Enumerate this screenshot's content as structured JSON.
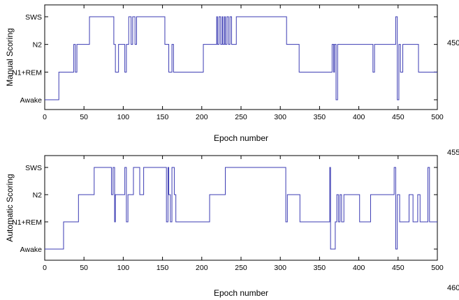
{
  "figure": {
    "side_numbers": [
      "450",
      "455",
      "460"
    ]
  },
  "chart_data": [
    {
      "type": "line",
      "xlabel": "Epoch number",
      "ylabel": "Manual Scoring",
      "xlim": [
        0,
        500
      ],
      "xticks": [
        0,
        50,
        100,
        150,
        200,
        250,
        300,
        350,
        400,
        450,
        500
      ],
      "ylevels": [
        0,
        1,
        2,
        3
      ],
      "ytick_labels": [
        "Awake",
        "N1+REM",
        "N2",
        "SWS"
      ],
      "series_color": "#3b3bb3",
      "series": [
        {
          "points": [
            [
              0,
              0
            ],
            [
              18,
              0
            ],
            [
              18,
              1
            ],
            [
              33,
              1
            ],
            [
              37,
              1
            ],
            [
              37,
              2
            ],
            [
              39,
              2
            ],
            [
              39,
              1
            ],
            [
              41,
              1
            ],
            [
              41,
              2
            ],
            [
              44,
              2
            ],
            [
              46,
              2
            ],
            [
              46,
              2
            ],
            [
              53,
              2
            ],
            [
              57,
              2
            ],
            [
              57,
              3
            ],
            [
              86,
              3
            ],
            [
              88,
              3
            ],
            [
              88,
              2
            ],
            [
              90,
              2
            ],
            [
              90,
              1
            ],
            [
              94,
              1
            ],
            [
              94,
              2
            ],
            [
              99,
              2
            ],
            [
              99,
              2
            ],
            [
              102,
              2
            ],
            [
              102,
              1
            ],
            [
              104,
              1
            ],
            [
              104,
              2
            ],
            [
              107,
              2
            ],
            [
              107,
              3
            ],
            [
              110,
              3
            ],
            [
              110,
              2
            ],
            [
              112,
              2
            ],
            [
              112,
              3
            ],
            [
              115,
              3
            ],
            [
              115,
              2
            ],
            [
              117,
              2
            ],
            [
              117,
              3
            ],
            [
              151,
              3
            ],
            [
              153,
              3
            ],
            [
              153,
              2
            ],
            [
              156,
              2
            ],
            [
              156,
              2
            ],
            [
              158,
              2
            ],
            [
              158,
              1
            ],
            [
              162,
              1
            ],
            [
              162,
              2
            ],
            [
              164,
              2
            ],
            [
              164,
              1
            ],
            [
              166,
              1
            ],
            [
              166,
              1
            ],
            [
              202,
              1
            ],
            [
              202,
              2
            ],
            [
              219,
              2
            ],
            [
              219,
              3
            ],
            [
              220,
              3
            ],
            [
              220,
              2
            ],
            [
              222,
              2
            ],
            [
              222,
              3
            ],
            [
              224,
              3
            ],
            [
              224,
              2
            ],
            [
              226,
              2
            ],
            [
              226,
              3
            ],
            [
              227,
              3
            ],
            [
              227,
              2
            ],
            [
              229,
              2
            ],
            [
              229,
              3
            ],
            [
              230,
              3
            ],
            [
              230,
              2
            ],
            [
              232,
              2
            ],
            [
              232,
              3
            ],
            [
              234,
              3
            ],
            [
              234,
              2
            ],
            [
              236,
              2
            ],
            [
              236,
              3
            ],
            [
              238,
              3
            ],
            [
              238,
              2
            ],
            [
              244,
              2
            ],
            [
              244,
              3
            ],
            [
              308,
              3
            ],
            [
              308,
              2
            ],
            [
              324,
              2
            ],
            [
              324,
              1
            ],
            [
              366,
              1
            ],
            [
              366,
              2
            ],
            [
              368,
              2
            ],
            [
              368,
              1
            ],
            [
              369,
              1
            ],
            [
              369,
              2
            ],
            [
              371,
              2
            ],
            [
              371,
              0
            ],
            [
              373,
              0
            ],
            [
              373,
              2
            ],
            [
              418,
              2
            ],
            [
              418,
              1
            ],
            [
              420,
              1
            ],
            [
              420,
              2
            ],
            [
              447,
              2
            ],
            [
              447,
              3
            ],
            [
              449,
              3
            ],
            [
              449,
              0
            ],
            [
              451,
              0
            ],
            [
              451,
              2
            ],
            [
              453,
              2
            ],
            [
              453,
              1
            ],
            [
              456,
              1
            ],
            [
              456,
              2
            ],
            [
              476,
              2
            ],
            [
              476,
              1
            ],
            [
              500,
              1
            ]
          ]
        }
      ]
    },
    {
      "type": "line",
      "xlabel": "Epoch number",
      "ylabel": "Automatic Scoring",
      "xlim": [
        0,
        500
      ],
      "xticks": [
        0,
        50,
        100,
        150,
        200,
        250,
        300,
        350,
        400,
        450,
        500
      ],
      "ylevels": [
        0,
        1,
        2,
        3
      ],
      "ytick_labels": [
        "Awake",
        "N1+REM",
        "N2",
        "SWS"
      ],
      "series_color": "#3b3bb3",
      "series": [
        {
          "points": [
            [
              0,
              0
            ],
            [
              24,
              0
            ],
            [
              24,
              1
            ],
            [
              43,
              1
            ],
            [
              43,
              2
            ],
            [
              63,
              2
            ],
            [
              63,
              3
            ],
            [
              85,
              3
            ],
            [
              85,
              2
            ],
            [
              87,
              2
            ],
            [
              87,
              3
            ],
            [
              89,
              3
            ],
            [
              89,
              1
            ],
            [
              90,
              1
            ],
            [
              90,
              2
            ],
            [
              102,
              2
            ],
            [
              102,
              3
            ],
            [
              104,
              3
            ],
            [
              104,
              1
            ],
            [
              106,
              1
            ],
            [
              106,
              2
            ],
            [
              113,
              2
            ],
            [
              113,
              3
            ],
            [
              121,
              3
            ],
            [
              121,
              2
            ],
            [
              126,
              2
            ],
            [
              126,
              3
            ],
            [
              155,
              3
            ],
            [
              155,
              1
            ],
            [
              157,
              1
            ],
            [
              157,
              3
            ],
            [
              158,
              3
            ],
            [
              158,
              2
            ],
            [
              160,
              2
            ],
            [
              160,
              1
            ],
            [
              162,
              1
            ],
            [
              162,
              3
            ],
            [
              165,
              3
            ],
            [
              165,
              2
            ],
            [
              167,
              2
            ],
            [
              167,
              1
            ],
            [
              210,
              1
            ],
            [
              210,
              2
            ],
            [
              230,
              2
            ],
            [
              230,
              3
            ],
            [
              307,
              3
            ],
            [
              307,
              1
            ],
            [
              309,
              1
            ],
            [
              309,
              2
            ],
            [
              325,
              2
            ],
            [
              325,
              1
            ],
            [
              363,
              1
            ],
            [
              363,
              3
            ],
            [
              364,
              3
            ],
            [
              364,
              0
            ],
            [
              370,
              0
            ],
            [
              370,
              1
            ],
            [
              372,
              1
            ],
            [
              372,
              2
            ],
            [
              374,
              2
            ],
            [
              374,
              1
            ],
            [
              376,
              1
            ],
            [
              376,
              2
            ],
            [
              378,
              2
            ],
            [
              378,
              1
            ],
            [
              381,
              1
            ],
            [
              381,
              2
            ],
            [
              401,
              2
            ],
            [
              401,
              1
            ],
            [
              415,
              1
            ],
            [
              415,
              2
            ],
            [
              445,
              2
            ],
            [
              445,
              3
            ],
            [
              447,
              3
            ],
            [
              447,
              0
            ],
            [
              449,
              0
            ],
            [
              449,
              2
            ],
            [
              452,
              2
            ],
            [
              452,
              1
            ],
            [
              464,
              1
            ],
            [
              464,
              2
            ],
            [
              469,
              2
            ],
            [
              469,
              1
            ],
            [
              475,
              1
            ],
            [
              475,
              2
            ],
            [
              478,
              2
            ],
            [
              478,
              1
            ],
            [
              488,
              1
            ],
            [
              488,
              3
            ],
            [
              490,
              3
            ],
            [
              490,
              1
            ],
            [
              500,
              1
            ]
          ]
        }
      ]
    }
  ]
}
